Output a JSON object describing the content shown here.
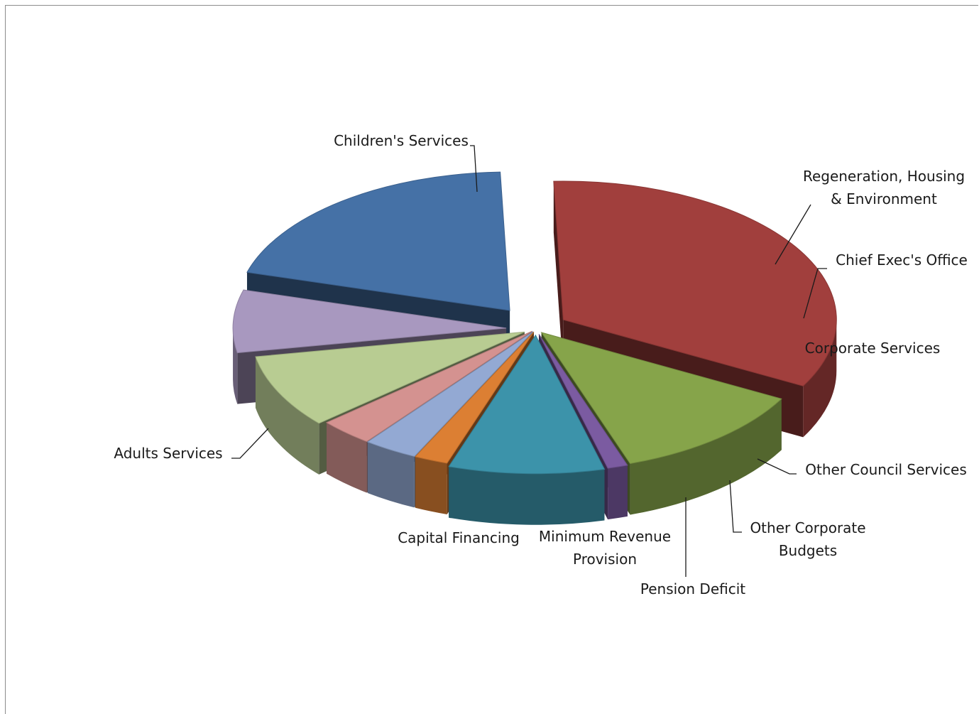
{
  "chart_data": {
    "type": "pie",
    "style": "3d-exploded",
    "title": "",
    "slices": [
      {
        "label": [
          "Children's Services"
        ],
        "value": 33.5,
        "color": "#a13f3d"
      },
      {
        "label": [
          "Regeneration, Housing",
          "& Environment"
        ],
        "value": 11.8,
        "color": "#86a44a"
      },
      {
        "label": [
          "Chief Exec's Office"
        ],
        "value": 1.2,
        "color": "#7b5ba1"
      },
      {
        "label": [
          "Corporate Services"
        ],
        "value": 9.2,
        "color": "#3c93aa"
      },
      {
        "label": [
          "Other Council Services"
        ],
        "value": 2.0,
        "color": "#dc7f33"
      },
      {
        "label": [
          "Other Corporate",
          "Budgets"
        ],
        "value": 3.2,
        "color": "#93a9d3"
      },
      {
        "label": [
          "Pension Deficit"
        ],
        "value": 3.2,
        "color": "#d49290"
      },
      {
        "label": [
          "Minimum Revenue",
          "Provision"
        ],
        "value": 8.6,
        "color": "#b8cc92"
      },
      {
        "label": [
          "Capital Financing"
        ],
        "value": 7.3,
        "color": "#a898bf"
      },
      {
        "label": [
          "Adults Services"
        ],
        "value": 20.0,
        "color": "#4571a6"
      }
    ],
    "legend": "none"
  }
}
